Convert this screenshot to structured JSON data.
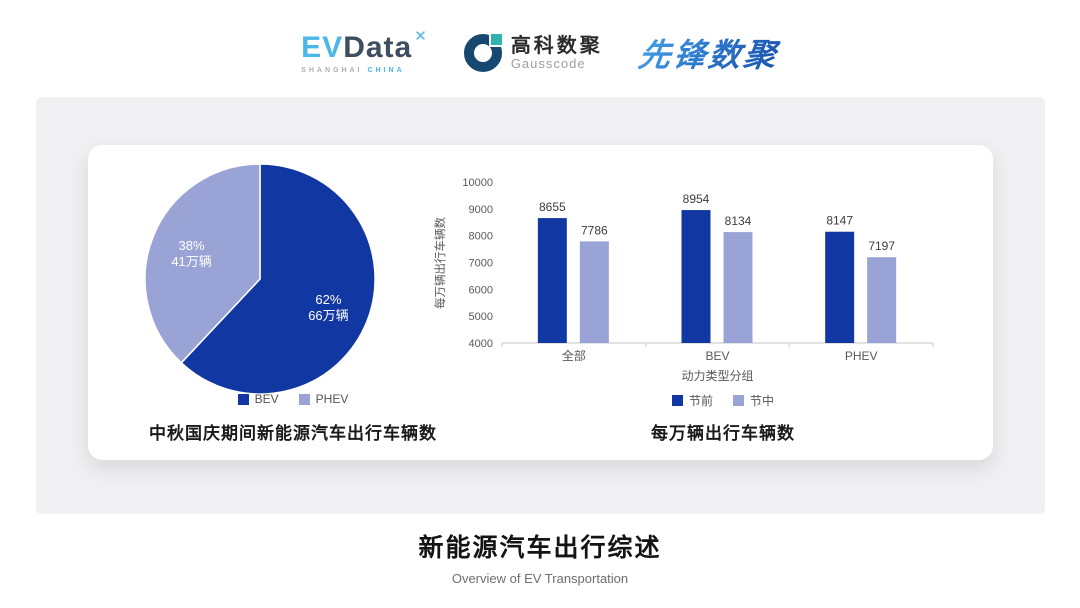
{
  "header": {
    "logos": {
      "evdata": {
        "ev": "EV",
        "data": "Data",
        "mark": "✕",
        "sub1": "SHANGHAI",
        "sub2": "CHINA"
      },
      "gausscode": {
        "cn": "高科数聚",
        "en": "Gausscode"
      },
      "xianfeng": {
        "text": "先锋数聚"
      }
    }
  },
  "colors": {
    "primary_blue": "#1138a2",
    "light_periwinkle": "#99a3d6",
    "panel_gray": "#f0f0f2",
    "axis_gray": "#d9d9d9",
    "label_gray": "#595959"
  },
  "chart_data": [
    {
      "type": "pie",
      "title": "中秋国庆期间新能源汽车出行车辆数",
      "slices": [
        {
          "label": "BEV",
          "percent": 62,
          "value_label": "66万辆",
          "color": "#1138a2"
        },
        {
          "label": "PHEV",
          "percent": 38,
          "value_label": "41万辆",
          "color": "#99a3d6"
        }
      ],
      "legend_position": "bottom"
    },
    {
      "type": "bar",
      "title": "每万辆出行车辆数",
      "categories": [
        "全部",
        "BEV",
        "PHEV"
      ],
      "series": [
        {
          "name": "节前",
          "values": [
            8655,
            8954,
            8147
          ],
          "color": "#1138a2"
        },
        {
          "name": "节中",
          "values": [
            7786,
            8134,
            7197
          ],
          "color": "#99a3d6"
        }
      ],
      "xlabel": "动力类型分组",
      "ylabel": "每万辆出行车辆数",
      "ylim": [
        4000,
        10000
      ],
      "ytick_step": 1000,
      "grid": false,
      "legend_position": "bottom"
    }
  ],
  "footer": {
    "title": "新能源汽车出行综述",
    "subtitle": "Overview of EV Transportation"
  }
}
